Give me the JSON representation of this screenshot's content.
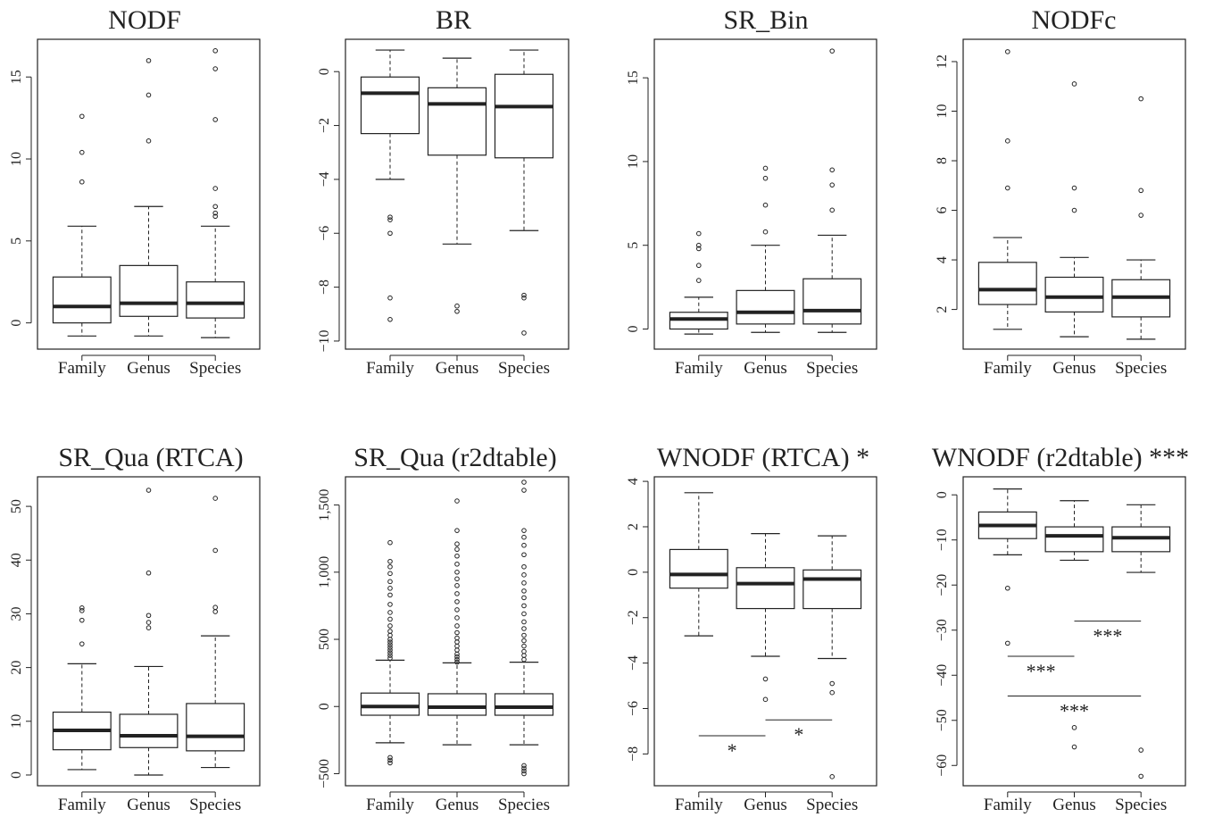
{
  "chart_data": [
    {
      "type": "box",
      "title": "NODF",
      "categories": [
        "Family",
        "Genus",
        "Species"
      ],
      "ylim": [
        -1.6,
        17.3
      ],
      "yticks": [
        {
          "v": 0,
          "t": "0"
        },
        {
          "v": 5,
          "t": "5"
        },
        {
          "v": 10,
          "t": "10"
        },
        {
          "v": 15,
          "t": "15"
        }
      ],
      "boxes": [
        {
          "whisker_low": -0.8,
          "q1": 0.0,
          "median": 1.0,
          "q3": 2.8,
          "whisker_high": 5.9,
          "outliers": [
            8.6,
            10.4,
            12.6
          ]
        },
        {
          "whisker_low": -0.8,
          "q1": 0.4,
          "median": 1.2,
          "q3": 3.5,
          "whisker_high": 7.1,
          "outliers": [
            11.1,
            13.9,
            16.0
          ]
        },
        {
          "whisker_low": -0.9,
          "q1": 0.3,
          "median": 1.2,
          "q3": 2.5,
          "whisker_high": 5.9,
          "outliers": [
            6.5,
            6.7,
            7.1,
            8.2,
            12.4,
            15.5,
            16.6
          ]
        }
      ],
      "significance": []
    },
    {
      "type": "box",
      "title": "BR",
      "categories": [
        "Family",
        "Genus",
        "Species"
      ],
      "ylim": [
        -10.3,
        1.2
      ],
      "yticks": [
        {
          "v": 0,
          "t": "0"
        },
        {
          "v": -2,
          "t": "−2"
        },
        {
          "v": -4,
          "t": "−4"
        },
        {
          "v": -6,
          "t": "−6"
        },
        {
          "v": -8,
          "t": "−8"
        },
        {
          "v": -10,
          "t": "−10"
        }
      ],
      "boxes": [
        {
          "whisker_low": -4.0,
          "q1": -2.3,
          "median": -0.8,
          "q3": -0.2,
          "whisker_high": 0.8,
          "outliers": [
            -5.4,
            -5.5,
            -6.0,
            -8.4,
            -9.2
          ]
        },
        {
          "whisker_low": -6.4,
          "q1": -3.1,
          "median": -1.2,
          "q3": -0.6,
          "whisker_high": 0.5,
          "outliers": [
            -8.7,
            -8.9
          ]
        },
        {
          "whisker_low": -5.9,
          "q1": -3.2,
          "median": -1.3,
          "q3": -0.1,
          "whisker_high": 0.8,
          "outliers": [
            -8.3,
            -8.4,
            -9.7
          ]
        }
      ],
      "significance": []
    },
    {
      "type": "box",
      "title": "SR_Bin",
      "categories": [
        "Family",
        "Genus",
        "Species"
      ],
      "ylim": [
        -1.2,
        17.3
      ],
      "yticks": [
        {
          "v": 0,
          "t": "0"
        },
        {
          "v": 5,
          "t": "5"
        },
        {
          "v": 10,
          "t": "10"
        },
        {
          "v": 15,
          "t": "15"
        }
      ],
      "boxes": [
        {
          "whisker_low": -0.3,
          "q1": 0.0,
          "median": 0.6,
          "q3": 1.0,
          "whisker_high": 1.9,
          "outliers": [
            2.9,
            3.8,
            4.8,
            5.0,
            5.7
          ]
        },
        {
          "whisker_low": -0.2,
          "q1": 0.3,
          "median": 1.0,
          "q3": 2.3,
          "whisker_high": 5.0,
          "outliers": [
            5.8,
            7.4,
            9.0,
            9.6
          ]
        },
        {
          "whisker_low": -0.2,
          "q1": 0.3,
          "median": 1.1,
          "q3": 3.0,
          "whisker_high": 5.6,
          "outliers": [
            7.1,
            8.6,
            9.5,
            16.6
          ]
        }
      ],
      "significance": []
    },
    {
      "type": "box",
      "title": "NODFc",
      "categories": [
        "Family",
        "Genus",
        "Species"
      ],
      "ylim": [
        0.4,
        12.9
      ],
      "yticks": [
        {
          "v": 2,
          "t": "2"
        },
        {
          "v": 4,
          "t": "4"
        },
        {
          "v": 6,
          "t": "6"
        },
        {
          "v": 8,
          "t": "8"
        },
        {
          "v": 10,
          "t": "10"
        },
        {
          "v": 12,
          "t": "12"
        }
      ],
      "boxes": [
        {
          "whisker_low": 1.2,
          "q1": 2.2,
          "median": 2.8,
          "q3": 3.9,
          "whisker_high": 4.9,
          "outliers": [
            6.9,
            8.8,
            12.4
          ]
        },
        {
          "whisker_low": 0.9,
          "q1": 1.9,
          "median": 2.5,
          "q3": 3.3,
          "whisker_high": 4.1,
          "outliers": [
            6.0,
            6.9,
            11.1
          ]
        },
        {
          "whisker_low": 0.8,
          "q1": 1.7,
          "median": 2.5,
          "q3": 3.2,
          "whisker_high": 4.0,
          "outliers": [
            5.8,
            6.8,
            10.5
          ]
        }
      ],
      "significance": []
    },
    {
      "type": "box",
      "title": "SR_Qua (RTCA)",
      "categories": [
        "Family",
        "Genus",
        "Species"
      ],
      "ylim": [
        -2,
        55.5
      ],
      "yticks": [
        {
          "v": 0,
          "t": "0"
        },
        {
          "v": 10,
          "t": "10"
        },
        {
          "v": 20,
          "t": "20"
        },
        {
          "v": 30,
          "t": "30"
        },
        {
          "v": 40,
          "t": "40"
        },
        {
          "v": 50,
          "t": "50"
        }
      ],
      "boxes": [
        {
          "whisker_low": 1.0,
          "q1": 4.7,
          "median": 8.3,
          "q3": 11.7,
          "whisker_high": 20.7,
          "outliers": [
            24.4,
            28.8,
            30.6,
            31.1
          ]
        },
        {
          "whisker_low": 0.0,
          "q1": 5.1,
          "median": 7.3,
          "q3": 11.3,
          "whisker_high": 20.2,
          "outliers": [
            27.4,
            28.4,
            29.7,
            37.6,
            53.0
          ]
        },
        {
          "whisker_low": 1.4,
          "q1": 4.5,
          "median": 7.2,
          "q3": 13.3,
          "whisker_high": 25.9,
          "outliers": [
            30.4,
            31.2,
            41.8,
            51.5
          ]
        }
      ],
      "significance": []
    },
    {
      "type": "box",
      "title": "SR_Qua (r2dtable)",
      "categories": [
        "Family",
        "Genus",
        "Species"
      ],
      "ylim": [
        -590,
        1710
      ],
      "yticks": [
        {
          "v": -500,
          "t": "−500"
        },
        {
          "v": 0,
          "t": "0"
        },
        {
          "v": 500,
          "t": "500"
        },
        {
          "v": 1000,
          "t": "1,000"
        },
        {
          "v": 1500,
          "t": "1,500"
        }
      ],
      "boxes": [
        {
          "whisker_low": -270,
          "q1": -65,
          "median": 0,
          "q3": 100,
          "whisker_high": 345,
          "outliers": [
            -380,
            -400,
            -420,
            360,
            380,
            400,
            420,
            440,
            460,
            480,
            500,
            530,
            560,
            600,
            650,
            700,
            760,
            830,
            880,
            930,
            990,
            1040,
            1080,
            1220
          ]
        },
        {
          "whisker_low": -285,
          "q1": -65,
          "median": -5,
          "q3": 95,
          "whisker_high": 325,
          "outliers": [
            330,
            350,
            370,
            390,
            420,
            450,
            480,
            510,
            550,
            600,
            660,
            720,
            780,
            840,
            900,
            950,
            1000,
            1060,
            1120,
            1170,
            1210,
            1310,
            1530
          ]
        },
        {
          "whisker_low": -285,
          "q1": -65,
          "median": -5,
          "q3": 95,
          "whisker_high": 330,
          "outliers": [
            -440,
            -460,
            -480,
            -500,
            350,
            380,
            410,
            450,
            490,
            530,
            580,
            630,
            690,
            750,
            810,
            860,
            920,
            980,
            1040,
            1130,
            1200,
            1260,
            1310,
            1610,
            1670
          ]
        }
      ],
      "significance": []
    },
    {
      "type": "box",
      "title": "WNODF (RTCA) *",
      "categories": [
        "Family",
        "Genus",
        "Species"
      ],
      "ylim": [
        -9.4,
        4.2
      ],
      "yticks": [
        {
          "v": 4,
          "t": "4"
        },
        {
          "v": 2,
          "t": "2"
        },
        {
          "v": 0,
          "t": "0"
        },
        {
          "v": -2,
          "t": "−2"
        },
        {
          "v": -4,
          "t": "−4"
        },
        {
          "v": -6,
          "t": "−6"
        },
        {
          "v": -8,
          "t": "−8"
        }
      ],
      "boxes": [
        {
          "whisker_low": -2.8,
          "q1": -0.7,
          "median": -0.1,
          "q3": 1.0,
          "whisker_high": 3.5,
          "outliers": []
        },
        {
          "whisker_low": -3.7,
          "q1": -1.6,
          "median": -0.5,
          "q3": 0.2,
          "whisker_high": 1.7,
          "outliers": [
            -4.7,
            -5.6
          ]
        },
        {
          "whisker_low": -3.8,
          "q1": -1.6,
          "median": -0.3,
          "q3": 0.1,
          "whisker_high": 1.6,
          "outliers": [
            -4.9,
            -5.3,
            -9.0
          ]
        }
      ],
      "significance": [
        {
          "from": 1,
          "to": 2,
          "y": -7.2,
          "label": "*"
        },
        {
          "from": 2,
          "to": 3,
          "y": -6.5,
          "label": "*"
        }
      ]
    },
    {
      "type": "box",
      "title": "WNODF (r2dtable) ***",
      "categories": [
        "Family",
        "Genus",
        "Species"
      ],
      "ylim": [
        -64.5,
        4
      ],
      "yticks": [
        {
          "v": 0,
          "t": "0"
        },
        {
          "v": -10,
          "t": "−10"
        },
        {
          "v": -20,
          "t": "−20"
        },
        {
          "v": -30,
          "t": "−30"
        },
        {
          "v": -40,
          "t": "−40"
        },
        {
          "v": -50,
          "t": "−50"
        },
        {
          "v": -60,
          "t": "−60"
        }
      ],
      "boxes": [
        {
          "whisker_low": -13.3,
          "q1": -9.7,
          "median": -6.8,
          "q3": -3.8,
          "whisker_high": 1.3,
          "outliers": [
            -20.7,
            -32.9
          ]
        },
        {
          "whisker_low": -14.5,
          "q1": -12.6,
          "median": -9.1,
          "q3": -7.1,
          "whisker_high": -1.3,
          "outliers": [
            -51.6,
            -55.9
          ]
        },
        {
          "whisker_low": -17.2,
          "q1": -12.6,
          "median": -9.5,
          "q3": -7.1,
          "whisker_high": -2.2,
          "outliers": [
            -56.6,
            -62.4
          ]
        }
      ],
      "significance": [
        {
          "from": 2,
          "to": 3,
          "y": -28.0,
          "label": "***"
        },
        {
          "from": 1,
          "to": 2,
          "y": -35.8,
          "label": "***"
        },
        {
          "from": 1,
          "to": 3,
          "y": -44.6,
          "label": "***"
        }
      ]
    }
  ]
}
